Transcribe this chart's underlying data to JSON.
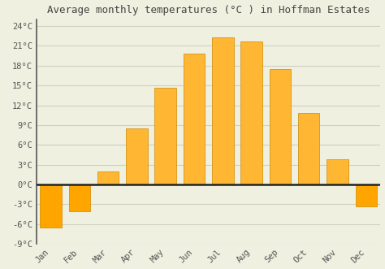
{
  "title": "Average monthly temperatures (°C ) in Hoffman Estates",
  "months": [
    "Jan",
    "Feb",
    "Mar",
    "Apr",
    "May",
    "Jun",
    "Jul",
    "Aug",
    "Sep",
    "Oct",
    "Nov",
    "Dec"
  ],
  "temperatures": [
    -6.5,
    -4.0,
    2.0,
    8.5,
    14.7,
    19.8,
    22.3,
    21.7,
    17.5,
    10.8,
    3.8,
    -3.3
  ],
  "bar_color_pos": "#FFB733",
  "bar_color_neg": "#FFA500",
  "bar_edge_color": "#CC8800",
  "ylim": [
    -9,
    25
  ],
  "yticks": [
    -9,
    -6,
    -3,
    0,
    3,
    6,
    9,
    12,
    15,
    18,
    21,
    24
  ],
  "ytick_labels": [
    "-9°C",
    "-6°C",
    "-3°C",
    "0°C",
    "3°C",
    "6°C",
    "9°C",
    "12°C",
    "15°C",
    "18°C",
    "21°C",
    "24°C"
  ],
  "background_color": "#f0f0e0",
  "grid_color": "#d0d0c0",
  "title_fontsize": 9,
  "tick_fontsize": 7.5,
  "zero_line_color": "#222222",
  "bar_width": 0.75,
  "left_spine_color": "#555555"
}
